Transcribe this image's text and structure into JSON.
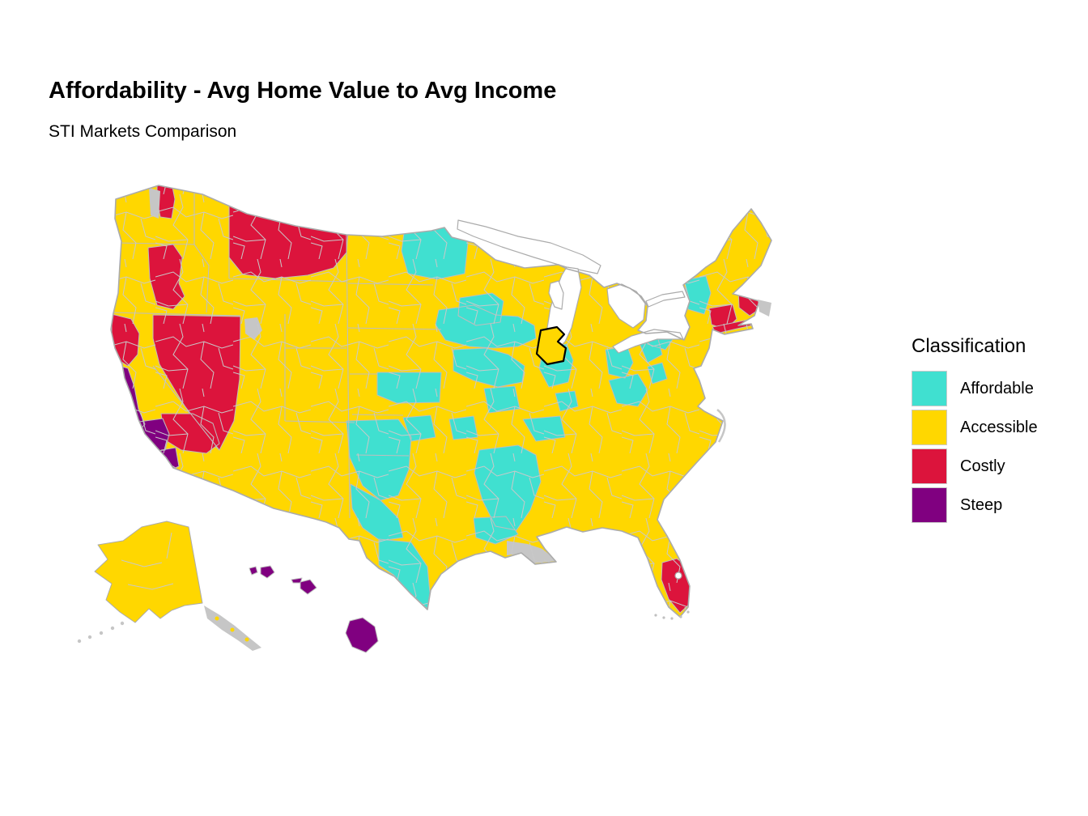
{
  "header": {
    "title": "Affordability - Avg Home Value to Avg Income",
    "subtitle": "STI Markets Comparison"
  },
  "legend": {
    "title": "Classification",
    "entries": [
      {
        "label": "Affordable",
        "color": "#40E0D0"
      },
      {
        "label": "Accessible",
        "color": "#FFD700"
      },
      {
        "label": "Costly",
        "color": "#DC143C"
      },
      {
        "label": "Steep",
        "color": "#800080"
      }
    ]
  },
  "map": {
    "type": "choropleth",
    "classes": [
      "Affordable",
      "Accessible",
      "Costly",
      "Steep"
    ],
    "class_colors": {
      "affordable": "#40E0D0",
      "accessible": "#FFD700",
      "costly": "#DC143C",
      "steep": "#800080"
    },
    "boundary_color": "#BEBEBE",
    "coast_color": "#ABABAB",
    "water_color": "#FFFFFF",
    "nodata_color": "#C6C6C6",
    "highlighted_market_outline": "#000000",
    "dominant_class": "Accessible"
  }
}
